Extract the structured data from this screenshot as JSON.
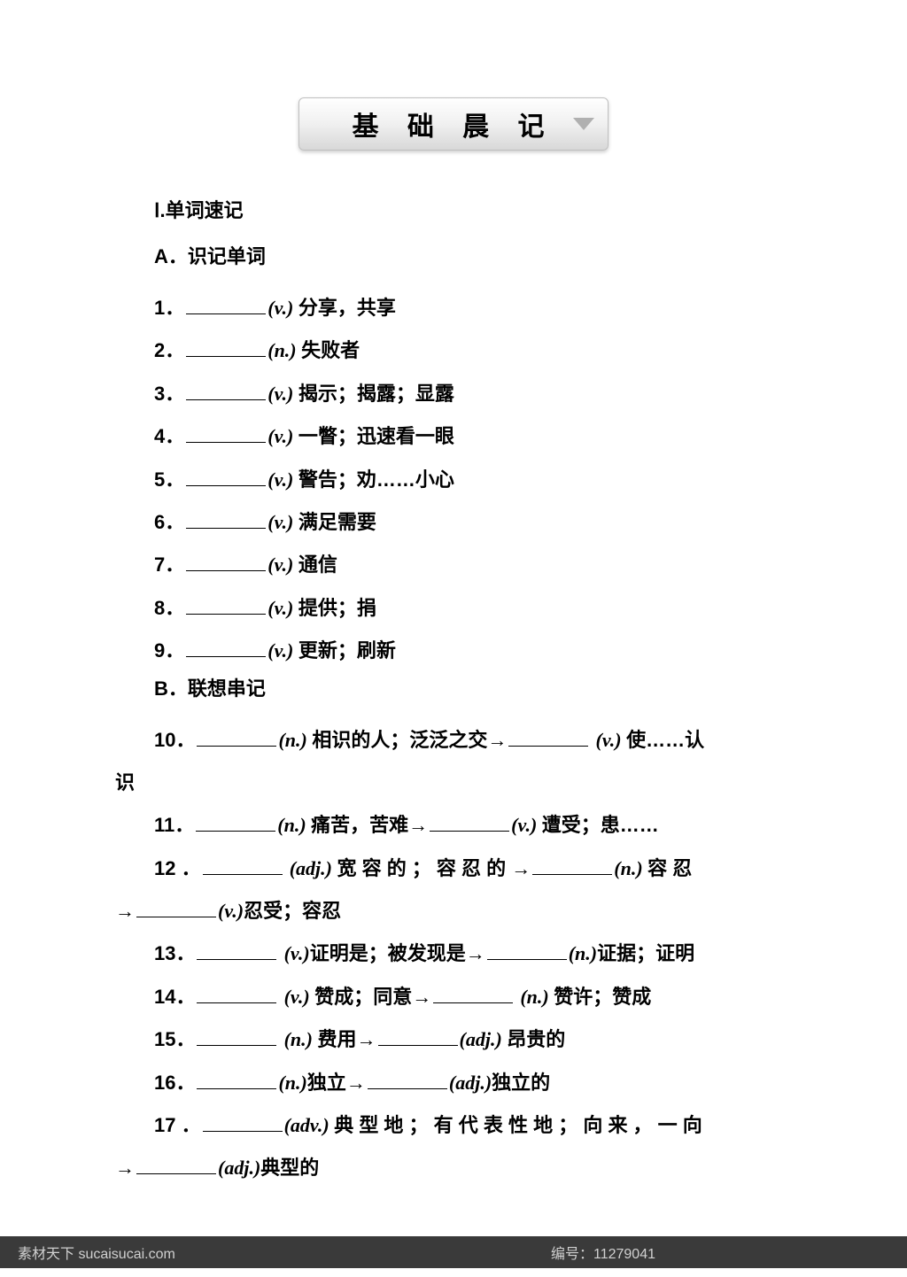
{
  "title": "基 础 晨 记",
  "section1": "Ⅰ.单词速记",
  "subsectionA": "A．识记单词",
  "subsectionB": "B．联想串记",
  "items": [
    {
      "num": "1．",
      "parts": [
        {
          "blank": true
        },
        {
          "pos": "(v.) "
        },
        {
          "text": "分享，共享"
        }
      ]
    },
    {
      "num": "2．",
      "parts": [
        {
          "blank": true
        },
        {
          "pos": "(n.) "
        },
        {
          "text": "失败者"
        }
      ]
    },
    {
      "num": "3．",
      "parts": [
        {
          "blank": true
        },
        {
          "pos": "(v.) "
        },
        {
          "text": "揭示；揭露；显露"
        }
      ]
    },
    {
      "num": "4．",
      "parts": [
        {
          "blank": true
        },
        {
          "pos": "(v.) "
        },
        {
          "text": "一瞥；迅速看一眼"
        }
      ]
    },
    {
      "num": "5．",
      "parts": [
        {
          "blank": true
        },
        {
          "pos": "(v.) "
        },
        {
          "text": "警告；劝……小心"
        }
      ]
    },
    {
      "num": "6．",
      "parts": [
        {
          "blank": true
        },
        {
          "pos": "(v.) "
        },
        {
          "text": "满足需要"
        }
      ]
    },
    {
      "num": "7．",
      "parts": [
        {
          "blank": true
        },
        {
          "pos": "(v.) "
        },
        {
          "text": "通信"
        }
      ]
    },
    {
      "num": "8．",
      "parts": [
        {
          "blank": true
        },
        {
          "pos": "(v.) "
        },
        {
          "text": "提供；捐"
        }
      ]
    },
    {
      "num": "9．",
      "parts": [
        {
          "blank": true
        },
        {
          "pos": "(v.) "
        },
        {
          "text": "更新；刷新"
        }
      ]
    }
  ],
  "itemsB": [
    {
      "num": "10．",
      "line1": [
        {
          "blank": true
        },
        {
          "pos": "(n.) "
        },
        {
          "text": "相识的人；泛泛之交"
        },
        {
          "arrow": "→"
        },
        {
          "blank": true
        },
        {
          "text": " "
        },
        {
          "pos": "(v.) "
        },
        {
          "text": "使……认"
        }
      ],
      "line2": "识"
    },
    {
      "num": "11．",
      "line1": [
        {
          "blank": true
        },
        {
          "pos": "(n.) "
        },
        {
          "text": "痛苦，苦难"
        },
        {
          "arrow": "→"
        },
        {
          "blank": true
        },
        {
          "pos": "(v.) "
        },
        {
          "text": "遭受；患……"
        }
      ]
    },
    {
      "num": "12 ．",
      "line1": [
        {
          "blank": true
        },
        {
          "text": " "
        },
        {
          "pos": "(adj.) "
        },
        {
          "text": "宽 容 的 ； 容 忍 的 "
        },
        {
          "arrow": "→"
        },
        {
          "blank": true
        },
        {
          "pos": "(n.) "
        },
        {
          "text": "容 忍"
        }
      ],
      "line2_prefix": "→",
      "line2_parts": [
        {
          "blank": true
        },
        {
          "pos": "(v.)"
        },
        {
          "text": "忍受；容忍"
        }
      ]
    },
    {
      "num": "13．",
      "line1": [
        {
          "blank": true
        },
        {
          "text": " "
        },
        {
          "pos": "(v.)"
        },
        {
          "text": "证明是；被发现是"
        },
        {
          "arrow": "→"
        },
        {
          "blank": true
        },
        {
          "pos": "(n.)"
        },
        {
          "text": "证据；证明"
        }
      ]
    },
    {
      "num": "14．",
      "line1": [
        {
          "blank": true
        },
        {
          "text": " "
        },
        {
          "pos": "(v.) "
        },
        {
          "text": "赞成；同意"
        },
        {
          "arrow": "→"
        },
        {
          "blank": true
        },
        {
          "text": " "
        },
        {
          "pos": "(n.) "
        },
        {
          "text": "赞许；赞成"
        }
      ]
    },
    {
      "num": "15．",
      "line1": [
        {
          "blank": true
        },
        {
          "text": " "
        },
        {
          "pos": "(n.) "
        },
        {
          "text": "费用"
        },
        {
          "arrow": "→"
        },
        {
          "blank": true
        },
        {
          "pos": "(adj.) "
        },
        {
          "text": "昂贵的"
        }
      ]
    },
    {
      "num": "16．",
      "line1": [
        {
          "blank": true
        },
        {
          "pos": "(n.)"
        },
        {
          "text": "独立"
        },
        {
          "arrow": "→"
        },
        {
          "blank": true
        },
        {
          "pos": "(adj.)"
        },
        {
          "text": "独立的"
        }
      ]
    },
    {
      "num": "17 ．",
      "line1": [
        {
          "blank": true
        },
        {
          "pos": "(adv.) "
        },
        {
          "text": "典 型 地 ； 有 代 表 性 地 ； 向 来 ， 一 向"
        }
      ],
      "line2_prefix": "→",
      "line2_parts": [
        {
          "blank": true
        },
        {
          "pos": "(adj.)"
        },
        {
          "text": "典型的"
        }
      ]
    }
  ],
  "footer_left": "素材天下 sucaisucai.com",
  "footer_right": "编号：11279041",
  "colors": {
    "background": "#ffffff",
    "text": "#000000",
    "footer_bg": "#3a3a3a",
    "footer_text": "#d0d0d0",
    "button_border": "#c0c0c0"
  },
  "fonts": {
    "body_size": 22,
    "title_size": 30
  }
}
